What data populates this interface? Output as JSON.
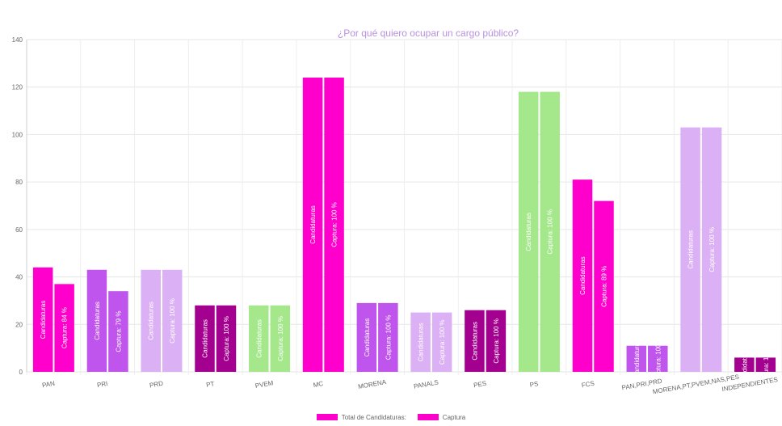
{
  "chart_data": {
    "type": "bar",
    "title": "¿Por qué quiero ocupar un cargo público?",
    "categories": [
      "PAN",
      "PRI",
      "PRD",
      "PT",
      "PVEM",
      "MC",
      "MORENA",
      "PANALS",
      "PES",
      "PS",
      "FCS",
      "PAN,PRI,PRD",
      "MORENA,PT,PVEM,NAS,PES",
      "INDEPENDIENTES"
    ],
    "series": [
      {
        "name": "Total de Candidaturas:",
        "values": [
          44,
          43,
          43,
          28,
          28,
          124,
          29,
          25,
          26,
          118,
          81,
          11,
          103,
          6
        ]
      },
      {
        "name": "Captura",
        "values": [
          37,
          34,
          43,
          28,
          28,
          124,
          29,
          25,
          26,
          118,
          72,
          11,
          103,
          6
        ]
      }
    ],
    "bar_colors": [
      "#ff00cc",
      "#bf55ec",
      "#dcb0f5",
      "#a4008f",
      "#a5e88c",
      "#ff00cc",
      "#bf55ec",
      "#dcb0f5",
      "#a4008f",
      "#a5e88c",
      "#ff00cc",
      "#bf55ec",
      "#dcb0f5",
      "#a4008f"
    ],
    "bar_label_prefix": "Candidaturas",
    "capture_label_prefix": "Captura:",
    "capture_percentages": [
      84,
      79,
      100,
      100,
      100,
      100,
      100,
      100,
      100,
      100,
      89,
      100,
      100,
      100
    ],
    "percent_suffix": " %",
    "y_ticks": [
      0,
      20,
      40,
      60,
      80,
      100,
      120,
      140
    ],
    "ylim": [
      0,
      140
    ],
    "grid": true,
    "legend_position": "bottom",
    "legend_colors": [
      "#ff00cc",
      "#ff00cc"
    ]
  }
}
